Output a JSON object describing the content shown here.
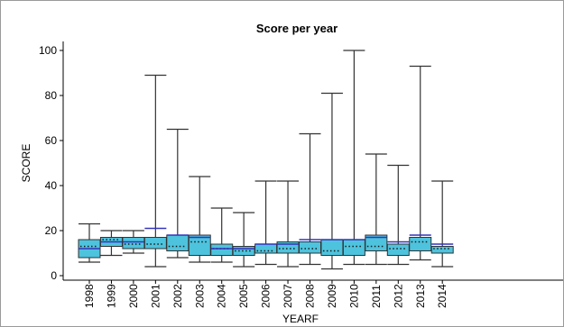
{
  "chart_data": {
    "type": "box",
    "title": "Score per year",
    "xlabel": "YEARF",
    "ylabel": "SCORE",
    "ylim": [
      -2,
      104
    ],
    "yticks": [
      0,
      20,
      40,
      60,
      80,
      100
    ],
    "grid": false,
    "legend": "none",
    "colors": {
      "box_fill": "#4ec3dd",
      "whisker": "#333333",
      "mean_line": "#3333bb",
      "median_dots": "#1a1a1a"
    },
    "categories": [
      "1998",
      "1999",
      "2000",
      "2001",
      "2002",
      "2003",
      "2004",
      "2005",
      "2006",
      "2007",
      "2008",
      "2009",
      "2010",
      "2011",
      "2012",
      "2013",
      "2014"
    ],
    "boxes": [
      {
        "year": "1998",
        "min": 6,
        "q1": 8,
        "median": 13,
        "q3": 16,
        "max": 23,
        "mean": 12
      },
      {
        "year": "1999",
        "min": 9,
        "q1": 13,
        "median": 16,
        "q3": 17,
        "max": 20,
        "mean": 15
      },
      {
        "year": "2000",
        "min": 10,
        "q1": 12,
        "median": 14,
        "q3": 17,
        "max": 20,
        "mean": 15
      },
      {
        "year": "2001",
        "min": 4,
        "q1": 12,
        "median": 14,
        "q3": 17,
        "max": 89,
        "mean": 21
      },
      {
        "year": "2002",
        "min": 8,
        "q1": 11,
        "median": 13,
        "q3": 18,
        "max": 65,
        "mean": 18
      },
      {
        "year": "2003",
        "min": 6,
        "q1": 9,
        "median": 15,
        "q3": 18,
        "max": 44,
        "mean": 17
      },
      {
        "year": "2004",
        "min": 6,
        "q1": 9,
        "median": 12,
        "q3": 14,
        "max": 30,
        "mean": 12
      },
      {
        "year": "2005",
        "min": 4,
        "q1": 9,
        "median": 11,
        "q3": 13,
        "max": 28,
        "mean": 12
      },
      {
        "year": "2006",
        "min": 5,
        "q1": 10,
        "median": 11,
        "q3": 14,
        "max": 42,
        "mean": 14
      },
      {
        "year": "2007",
        "min": 4,
        "q1": 10,
        "median": 12,
        "q3": 15,
        "max": 42,
        "mean": 14
      },
      {
        "year": "2008",
        "min": 5,
        "q1": 10,
        "median": 12,
        "q3": 15,
        "max": 63,
        "mean": 16
      },
      {
        "year": "2009",
        "min": 3,
        "q1": 9,
        "median": 11,
        "q3": 16,
        "max": 81,
        "mean": 16
      },
      {
        "year": "2010",
        "min": 5,
        "q1": 9,
        "median": 13,
        "q3": 16,
        "max": 100,
        "mean": 16
      },
      {
        "year": "2011",
        "min": 5,
        "q1": 11,
        "median": 13,
        "q3": 18,
        "max": 54,
        "mean": 17
      },
      {
        "year": "2012",
        "min": 5,
        "q1": 9,
        "median": 12,
        "q3": 14,
        "max": 49,
        "mean": 15
      },
      {
        "year": "2013",
        "min": 7,
        "q1": 11,
        "median": 15,
        "q3": 17,
        "max": 93,
        "mean": 18
      },
      {
        "year": "2014",
        "min": 4,
        "q1": 10,
        "median": 12,
        "q3": 13,
        "max": 42,
        "mean": 14
      }
    ]
  }
}
